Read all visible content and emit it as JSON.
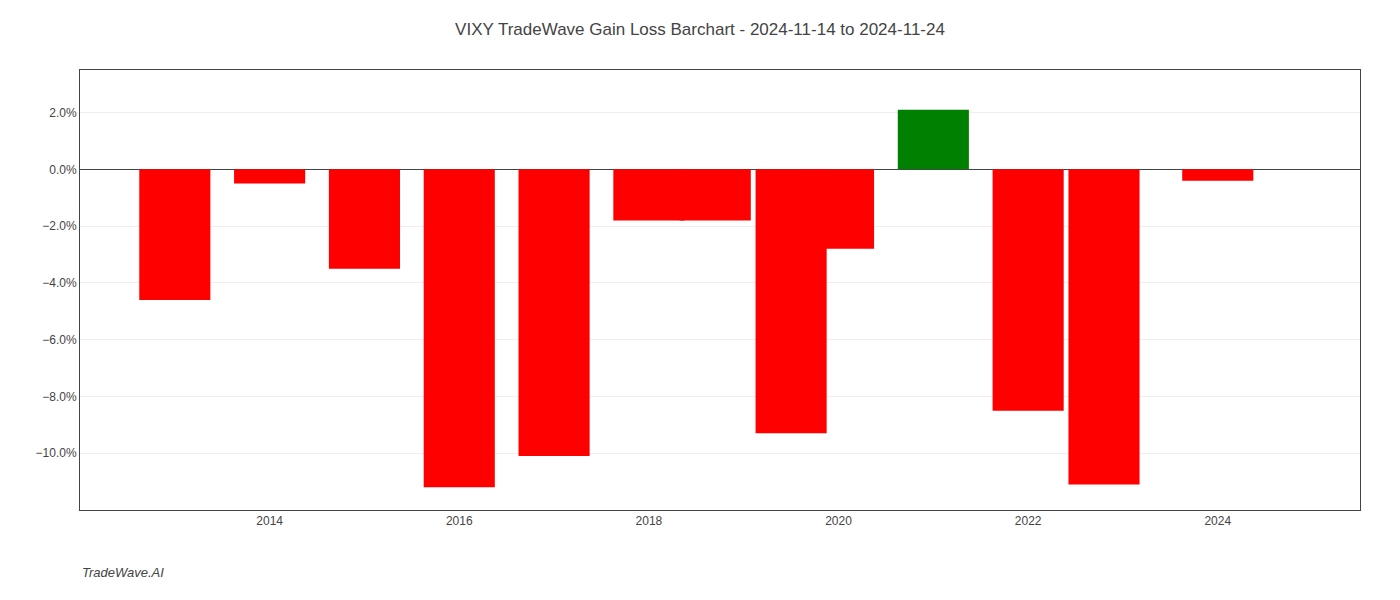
{
  "chart_data": {
    "type": "bar",
    "title": "VIXY TradeWave Gain Loss Barchart - 2024-11-14 to 2024-11-24",
    "annotations": [
      {
        "text": "TradeWave.AI"
      }
    ],
    "x": [
      2013,
      2014,
      2015,
      2016,
      2017,
      2018,
      2018.7,
      2019.5,
      2020,
      2021,
      2022,
      2022.8,
      2024
    ],
    "values": [
      -4.6,
      -0.5,
      -3.5,
      -11.2,
      -10.1,
      -1.8,
      -1.8,
      -9.3,
      -2.8,
      2.1,
      -8.5,
      -11.1,
      -0.4
    ],
    "colors": [
      "#ff0000",
      "#ff0000",
      "#ff0000",
      "#ff0000",
      "#ff0000",
      "#ff0000",
      "#ff0000",
      "#ff0000",
      "#ff0000",
      "#008000",
      "#ff0000",
      "#ff0000",
      "#ff0000"
    ],
    "xlim": [
      2012.0,
      2025.5
    ],
    "xticks": [
      2014,
      2016,
      2018,
      2020,
      2022,
      2024
    ],
    "ylim": [
      -12.0,
      3.5
    ],
    "yticks": [
      {
        "value": 2.0,
        "label": "2.0%"
      },
      {
        "value": 0.0,
        "label": "0.0%"
      },
      {
        "value": -2.0,
        "label": "−2.0%"
      },
      {
        "value": -4.0,
        "label": "−4.0%"
      },
      {
        "value": -6.0,
        "label": "−6.0%"
      },
      {
        "value": -8.0,
        "label": "−8.0%"
      },
      {
        "value": -10.0,
        "label": "−10.0%"
      }
    ],
    "grid": "y"
  }
}
